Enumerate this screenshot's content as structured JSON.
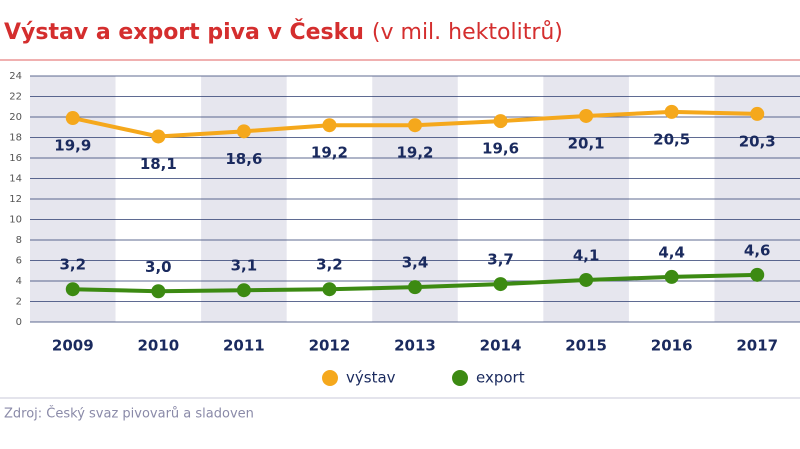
{
  "chart_data": {
    "type": "line",
    "title": "Výstav a export piva v Česku",
    "subtitle": "(v mil. hektolitrů)",
    "categories": [
      "2009",
      "2010",
      "2011",
      "2012",
      "2013",
      "2014",
      "2015",
      "2016",
      "2017"
    ],
    "series": [
      {
        "name": "výstav",
        "color": "#f5a81c",
        "values": [
          19.9,
          18.1,
          18.6,
          19.2,
          19.2,
          19.6,
          20.1,
          20.5,
          20.3
        ],
        "value_labels": [
          "19,9",
          "18,1",
          "18,6",
          "19,2",
          "19,2",
          "19,6",
          "20,1",
          "20,5",
          "20,3"
        ]
      },
      {
        "name": "export",
        "color": "#3c8a12",
        "values": [
          3.2,
          3.0,
          3.1,
          3.2,
          3.4,
          3.7,
          4.1,
          4.4,
          4.6
        ],
        "value_labels": [
          "3,2",
          "3,0",
          "3,1",
          "3,2",
          "3,4",
          "3,7",
          "4,1",
          "4,4",
          "4,6"
        ]
      }
    ],
    "ylim": [
      0,
      24
    ],
    "yticks": [
      0,
      2,
      4,
      6,
      8,
      10,
      12,
      14,
      16,
      18,
      20,
      22,
      24
    ],
    "grid": true,
    "shaded_bands": true,
    "source": "Zdroj: Český svaz pivovarů a sladoven"
  }
}
